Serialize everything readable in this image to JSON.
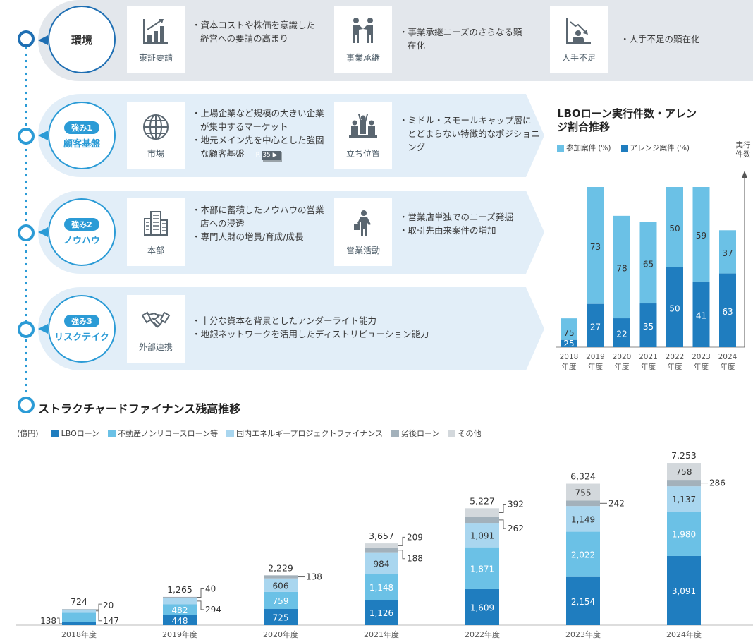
{
  "environment": {
    "badge_title": "環境",
    "items": [
      {
        "icon": "rising-bar-chart-icon",
        "label": "東証要請",
        "bullets": [
          "資本コストや株価を意識した経営への要請の高まり"
        ]
      },
      {
        "icon": "handshake-people-icon",
        "label": "事業承継",
        "bullets": [
          "事業承継ニーズのさらなる顕在化"
        ]
      },
      {
        "icon": "declining-chart-person-icon",
        "label": "人手不足",
        "bullets": [
          "人手不足の顕在化"
        ]
      }
    ]
  },
  "strengths": [
    {
      "pill": "強み1",
      "title": "顧客基盤",
      "items": [
        {
          "icon": "globe-icon",
          "label": "市場",
          "bullets": [
            "上場企業など規模の大きい企業が集中するマーケット",
            "地元メイン先を中心とした強固な顧客基盤"
          ],
          "page_ref": "P. 35 ▶"
        },
        {
          "icon": "podium-people-icon",
          "label": "立ち位置",
          "bullets": [
            "ミドル・スモールキャップ層にとどまらない特徴的なポジショニング"
          ]
        }
      ]
    },
    {
      "pill": "強み2",
      "title": "ノウハウ",
      "items": [
        {
          "icon": "office-building-icon",
          "label": "本部",
          "bullets": [
            "本部に蓄積したノウハウの営業店への浸透",
            "専門人財の増員/育成/成長"
          ]
        },
        {
          "icon": "businessperson-briefcase-icon",
          "label": "営業活動",
          "bullets": [
            "営業店単独でのニーズ発掘",
            "取引先由来案件の増加"
          ]
        }
      ]
    },
    {
      "pill": "強み3",
      "title": "リスクテイク",
      "items": [
        {
          "icon": "handshake-icon",
          "label": "外部連携",
          "bullets": [
            "十分な資本を背景としたアンダーライト能力",
            "地銀ネットワークを活用したディストリビューション能力"
          ]
        }
      ]
    }
  ],
  "section_title": "ストラクチャードファイナンス残高推移",
  "colors": {
    "lbo": "#1f7dbf",
    "realestate": "#6bc1e6",
    "energy": "#a9d6ef",
    "mezz": "#a3b1bb",
    "other": "#d3d8dc",
    "accent": "#2b9bd6",
    "env_bg": "#e3e7ec",
    "str_bg": "#e2eef8"
  },
  "chart_data": [
    {
      "type": "bar",
      "stacked": true,
      "title": "LBOローン実行件数・アレンジ割合推移",
      "categories": [
        "2018年度",
        "2019年度",
        "2020年度",
        "2021年度",
        "2022年度",
        "2023年度",
        "2024年度"
      ],
      "series": [
        {
          "name": "アレンジ案件 (%)",
          "values": [
            25,
            27,
            22,
            35,
            50,
            41,
            63
          ]
        },
        {
          "name": "参加案件 (%)",
          "values": [
            75,
            73,
            78,
            65,
            50,
            59,
            37
          ]
        }
      ],
      "bar_height_index": [
        18,
        100,
        82,
        78,
        100,
        100,
        73
      ],
      "ylabel": "実行件数",
      "grid": false,
      "legend": "top-left"
    },
    {
      "type": "bar",
      "stacked": true,
      "title": "ストラクチャードファイナンス残高推移",
      "unit": "(億円)",
      "categories": [
        "2018年度",
        "2019年度",
        "2020年度",
        "2021年度",
        "2022年度",
        "2023年度",
        "2024年度"
      ],
      "series": [
        {
          "name": "LBOローン",
          "values": [
            138,
            448,
            725,
            1126,
            1609,
            2154,
            3091
          ]
        },
        {
          "name": "不動産ノンリコースローン等",
          "values": [
            418,
            482,
            759,
            1148,
            1871,
            2022,
            1980
          ]
        },
        {
          "name": "国内エネルギープロジェクトファイナンス",
          "values": [
            147,
            294,
            606,
            984,
            1091,
            1149,
            1137
          ]
        },
        {
          "name": "劣後ローン",
          "values": [
            20,
            40,
            138,
            188,
            262,
            242,
            286
          ]
        },
        {
          "name": "その他",
          "values": [
            0,
            0,
            0,
            209,
            392,
            755,
            758
          ]
        }
      ],
      "totals": [
        "724",
        "1,265",
        "2,229",
        "3,657",
        "5,227",
        "6,324",
        "7,253"
      ],
      "value_labels": [
        [
          "138",
          "418",
          "147",
          "20",
          ""
        ],
        [
          "448",
          "482",
          "294",
          "40",
          ""
        ],
        [
          "725",
          "759",
          "606",
          "138",
          ""
        ],
        [
          "1,126",
          "1,148",
          "984",
          "188",
          "209"
        ],
        [
          "1,609",
          "1,871",
          "1,091",
          "262",
          "392"
        ],
        [
          "2,154",
          "2,022",
          "1,149",
          "242",
          "755"
        ],
        [
          "3,091",
          "1,980",
          "1,137",
          "286",
          "758"
        ]
      ],
      "ylim": [
        0,
        7500
      ],
      "grid": false,
      "legend": "top-left"
    }
  ]
}
